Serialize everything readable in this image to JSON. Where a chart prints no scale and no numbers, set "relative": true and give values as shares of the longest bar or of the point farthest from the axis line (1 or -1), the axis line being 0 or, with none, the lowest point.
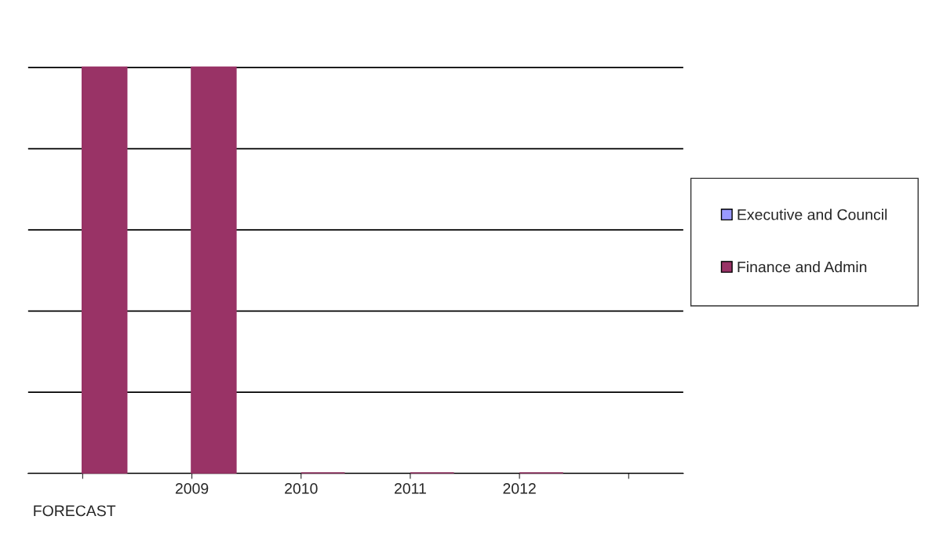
{
  "chart_data": {
    "type": "bar",
    "relative": true,
    "categories": [
      null,
      "2009",
      "2010",
      "2011",
      "2012",
      null
    ],
    "series": [
      {
        "name": "Executive and Council",
        "color": "#9999ff",
        "values": [
          null,
          null,
          null,
          null,
          null,
          null
        ]
      },
      {
        "name": "Finance and Admin",
        "color": "#993366",
        "values": [
          1,
          1,
          0,
          0,
          0,
          null
        ]
      }
    ],
    "grid": "y",
    "legend": "right",
    "annotations": [
      "FORECAST"
    ]
  }
}
